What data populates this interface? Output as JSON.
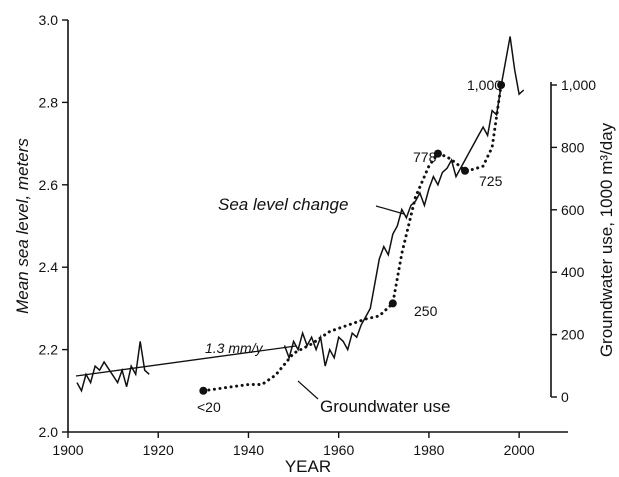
{
  "chart_data": {
    "type": "line",
    "xlabel": "YEAR",
    "ylabel_left": "Mean sea level, meters",
    "ylabel_right": "Groundwater use, 1000 m³/day",
    "x_ticks": [
      "1900",
      "1920",
      "1940",
      "1960",
      "1980",
      "2000"
    ],
    "y_left_ticks": [
      "2.0",
      "2.2",
      "2.4",
      "2.6",
      "2.8",
      "3.0"
    ],
    "y_right_ticks": [
      "0",
      "200",
      "400",
      "600",
      "800",
      "1,000"
    ],
    "xlim": [
      1900,
      2005
    ],
    "ylim_left": [
      2.0,
      3.0
    ],
    "ylim_right": [
      0,
      1000
    ],
    "grid": false,
    "series": [
      {
        "name": "Sea level change",
        "axis": "left",
        "style": "solid",
        "x": [
          1902,
          1903,
          1904,
          1905,
          1906,
          1907,
          1908,
          1911,
          1912,
          1913,
          1914,
          1915,
          1916,
          1917,
          1918,
          1948,
          1949,
          1950,
          1951,
          1952,
          1953,
          1954,
          1955,
          1956,
          1957,
          1958,
          1959,
          1960,
          1961,
          1962,
          1963,
          1964,
          1965,
          1966,
          1967,
          1968,
          1969,
          1970,
          1971,
          1972,
          1973,
          1974,
          1975,
          1976,
          1977,
          1978,
          1979,
          1980,
          1981,
          1982,
          1983,
          1984,
          1985,
          1986,
          1987,
          1988,
          1989,
          1990,
          1991,
          1992,
          1993,
          1994,
          1995,
          1996,
          1997,
          1998,
          1999,
          2000,
          2001
        ],
        "y": [
          2.12,
          2.1,
          2.14,
          2.12,
          2.16,
          2.15,
          2.17,
          2.12,
          2.15,
          2.11,
          2.16,
          2.14,
          2.22,
          2.15,
          2.14,
          2.21,
          2.18,
          2.22,
          2.2,
          2.24,
          2.21,
          2.23,
          2.2,
          2.23,
          2.16,
          2.2,
          2.18,
          2.23,
          2.22,
          2.2,
          2.24,
          2.23,
          2.26,
          2.28,
          2.3,
          2.36,
          2.42,
          2.45,
          2.43,
          2.48,
          2.5,
          2.54,
          2.52,
          2.55,
          2.56,
          2.58,
          2.55,
          2.59,
          2.62,
          2.6,
          2.63,
          2.64,
          2.66,
          2.62,
          2.64,
          2.66,
          2.68,
          2.7,
          2.72,
          2.74,
          2.72,
          2.78,
          2.77,
          2.84,
          2.9,
          2.96,
          2.88,
          2.82,
          2.83
        ]
      },
      {
        "name": "Groundwater use",
        "axis": "right",
        "style": "dotted",
        "x": [
          1930,
          1935,
          1940,
          1943,
          1946,
          1950,
          1954,
          1958,
          1962,
          1966,
          1969,
          1972,
          1974,
          1977,
          1980,
          1982,
          1984,
          1986,
          1988,
          1990,
          1992,
          1994,
          1996
        ],
        "y": [
          20,
          30,
          40,
          40,
          70,
          140,
          170,
          210,
          230,
          250,
          260,
          300,
          460,
          640,
          740,
          780,
          770,
          750,
          725,
          730,
          740,
          800,
          1000
        ]
      }
    ],
    "point_labels": [
      "<20",
      "250",
      "778",
      "725",
      "1,000"
    ],
    "annotations": {
      "trend_label": "1.3 mm/y",
      "sea_level_label": "Sea level change",
      "groundwater_label": "Groundwater use"
    }
  }
}
